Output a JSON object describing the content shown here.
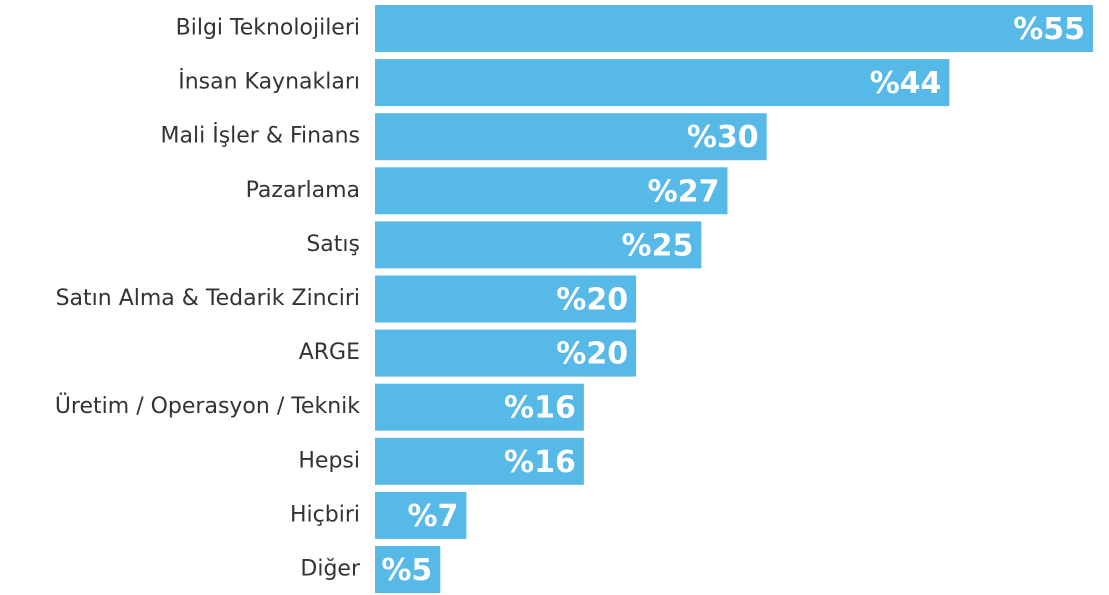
{
  "chart_data": {
    "type": "bar",
    "orientation": "horizontal",
    "categories": [
      "Bilgi Teknolojileri",
      "İnsan Kaynakları",
      "Mali İşler & Finans",
      "Pazarlama",
      "Satış",
      "Satın Alma & Tedarik Zinciri",
      "ARGE",
      "Üretim / Operasyon / Teknik",
      "Hepsi",
      "Hiçbiri",
      "Diğer"
    ],
    "values": [
      55,
      44,
      30,
      27,
      25,
      20,
      20,
      16,
      16,
      7,
      5
    ],
    "value_labels": [
      "%55",
      "%44",
      "%30",
      "%27",
      "%25",
      "%20",
      "%20",
      "%16",
      "%16",
      "%7",
      "%5"
    ],
    "color": "#56b9e8"
  }
}
